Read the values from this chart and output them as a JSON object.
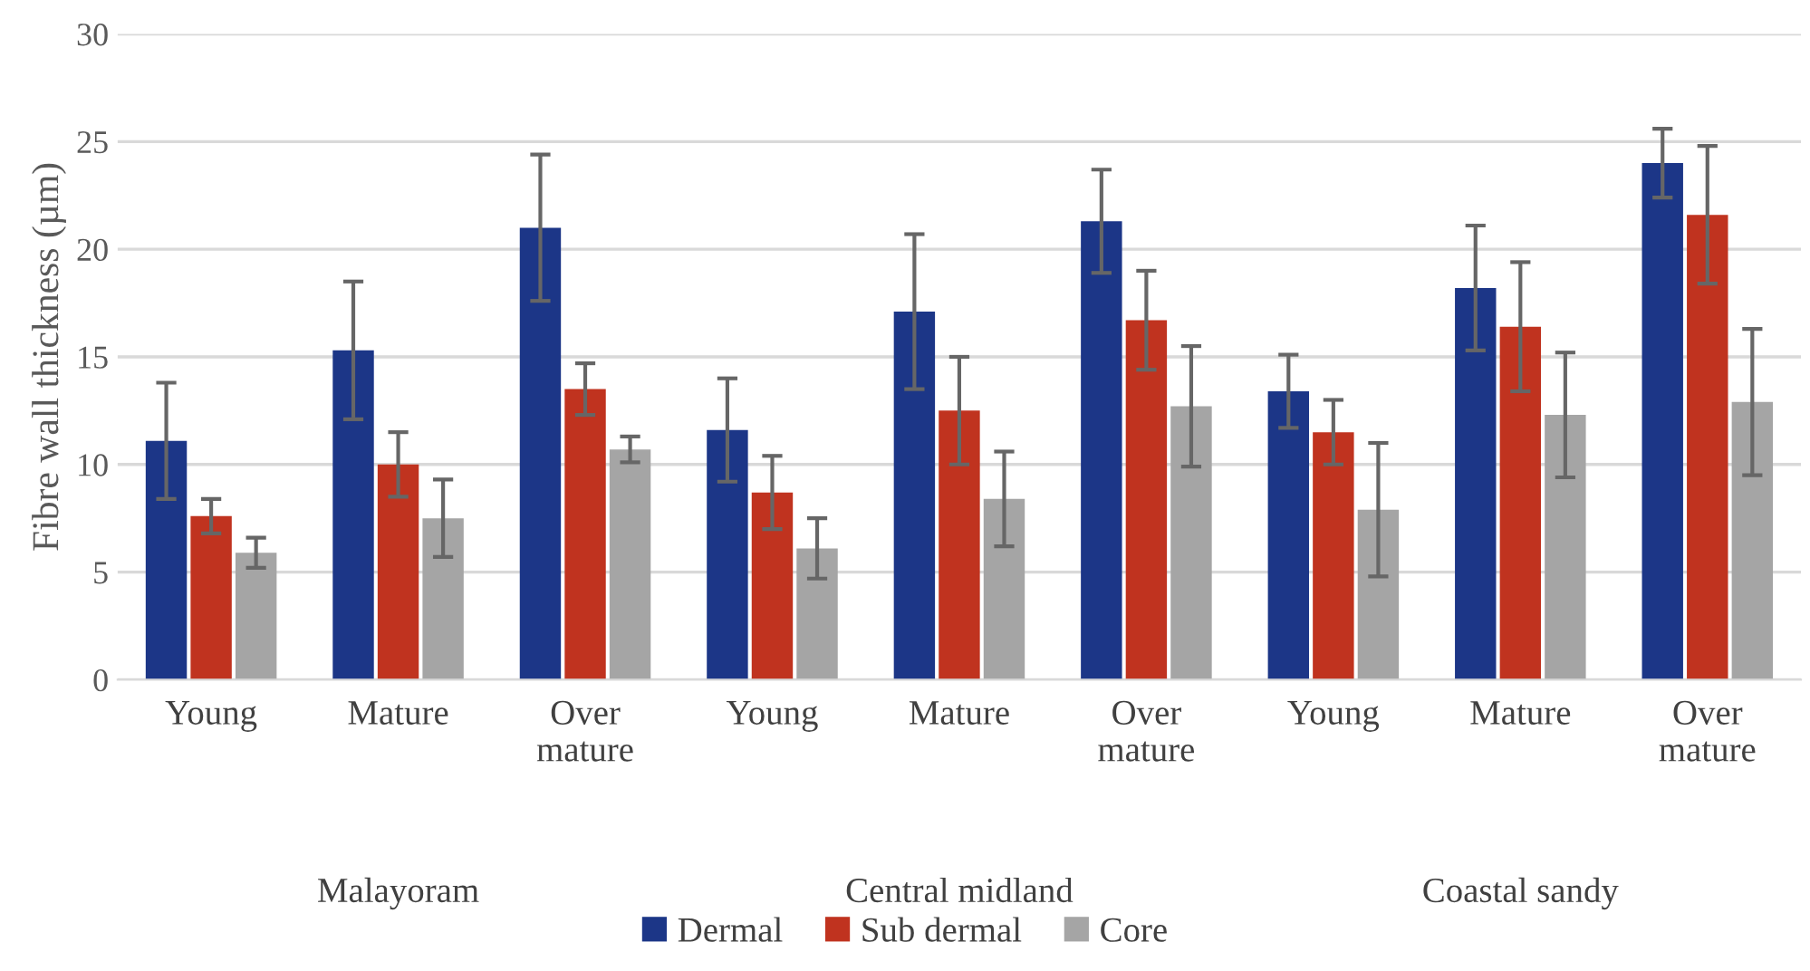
{
  "chart_data": {
    "type": "bar",
    "ylabel": "Fibre wall thickness (µm)",
    "categories": [
      "Young",
      "Mature",
      "Over\nmature",
      "Young",
      "Mature",
      "Over\nmature",
      "Young",
      "Mature",
      "Over\nmature"
    ],
    "annotations": [
      "Malayoram",
      "Central midland",
      "Coastal sandy"
    ],
    "series": [
      {
        "name": "Dermal",
        "color": "#1c3687",
        "values": [
          11.1,
          15.3,
          21.0,
          11.6,
          17.1,
          21.3,
          13.4,
          18.2,
          24.0
        ],
        "errors": [
          2.7,
          3.2,
          3.4,
          2.4,
          3.6,
          2.4,
          1.7,
          2.9,
          1.6
        ]
      },
      {
        "name": "Sub dermal",
        "color": "#c0331f",
        "values": [
          7.6,
          10.0,
          13.5,
          8.7,
          12.5,
          16.7,
          11.5,
          16.4,
          21.6
        ],
        "errors": [
          0.8,
          1.5,
          1.2,
          1.7,
          2.5,
          2.3,
          1.5,
          3.0,
          3.2
        ]
      },
      {
        "name": "Core",
        "color": "#a5a5a5",
        "values": [
          5.9,
          7.5,
          10.7,
          6.1,
          8.4,
          12.7,
          7.9,
          12.3,
          12.9
        ],
        "errors": [
          0.7,
          1.8,
          0.6,
          1.4,
          2.2,
          2.8,
          3.1,
          2.9,
          3.4
        ]
      }
    ],
    "ylim": [
      0,
      30
    ],
    "yticks": [
      0,
      5,
      10,
      15,
      20,
      25,
      30
    ],
    "grid": "y",
    "legend": "bottom"
  }
}
